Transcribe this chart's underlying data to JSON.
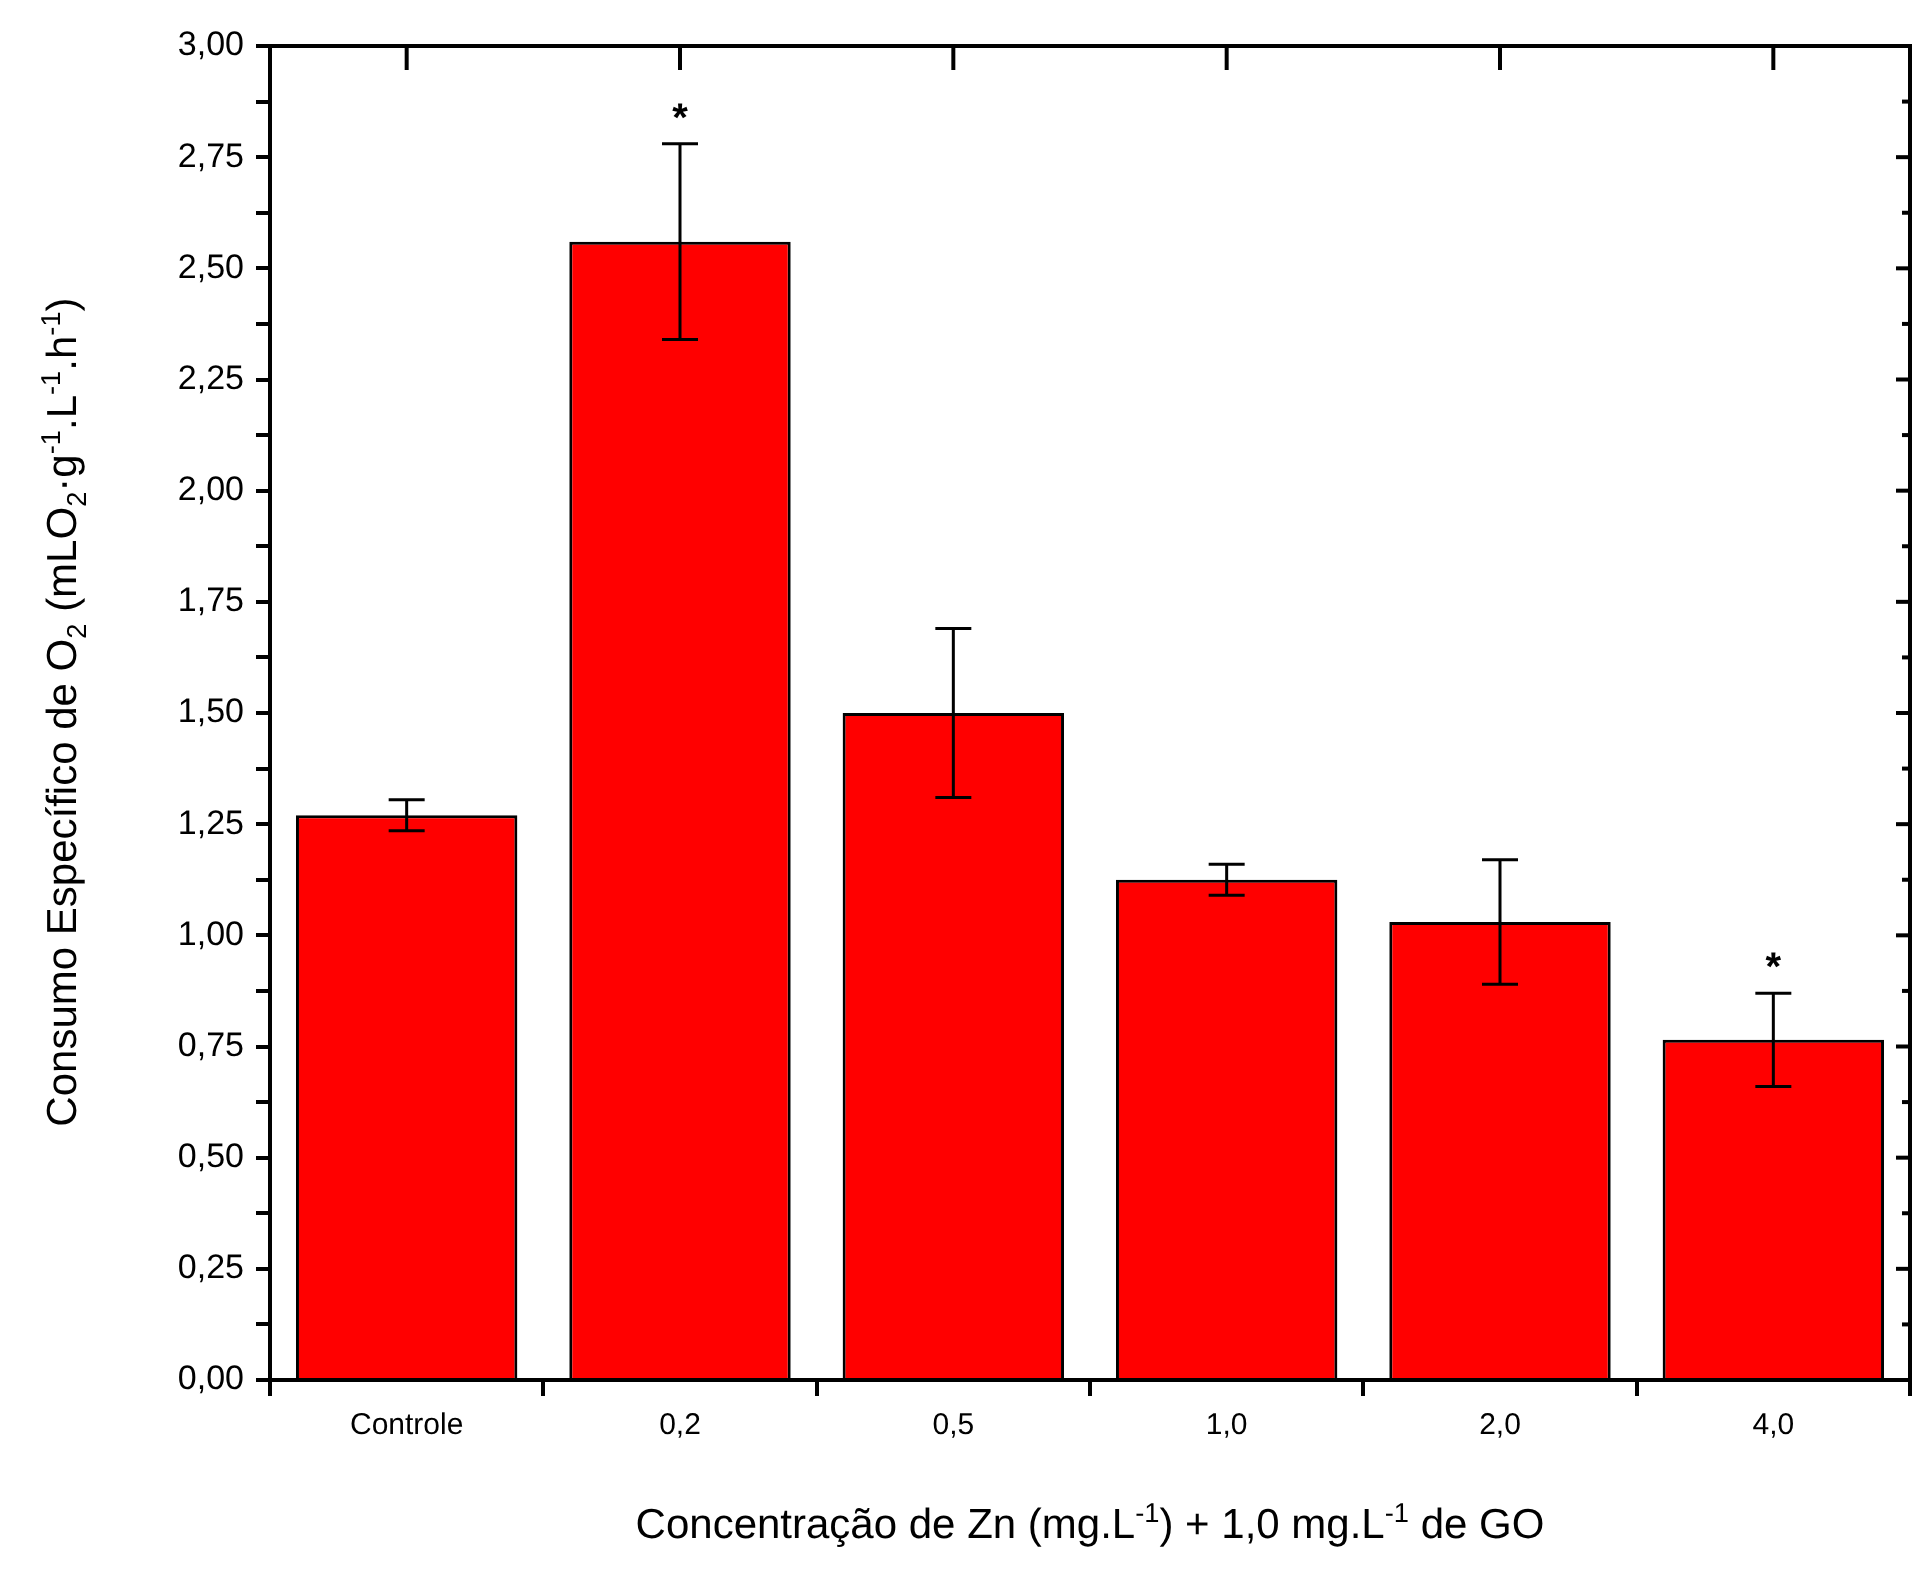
{
  "chart_data": {
    "type": "bar",
    "xlabel": "Concentração de Zn (mg.L$^{-1}$) + 1,0 mg.L$^{-1}$ de GO",
    "ylabel": "Consumo Específico de O$_{2}$ (mLO$_{2}$·g$^{-1}$.L$^{-1}$.h$^{-1}$)",
    "categories": [
      "Controle",
      "0,2",
      "0,5",
      "1,0",
      "2,0",
      "4,0"
    ],
    "values": [
      1.27,
      2.56,
      1.5,
      1.125,
      1.03,
      0.765
    ],
    "errors": [
      0.035,
      0.22,
      0.19,
      0.035,
      0.14,
      0.105
    ],
    "color": "#ff0000",
    "ylim": [
      0,
      3
    ],
    "yticks": [
      {
        "value": 0,
        "label": "0,00"
      },
      {
        "value": 0.125,
        "label": null
      },
      {
        "value": 0.25,
        "label": "0,25"
      },
      {
        "value": 0.375,
        "label": null
      },
      {
        "value": 0.5,
        "label": "0,50"
      },
      {
        "value": 0.625,
        "label": null
      },
      {
        "value": 0.75,
        "label": "0,75"
      },
      {
        "value": 0.875,
        "label": null
      },
      {
        "value": 1,
        "label": "1,00"
      },
      {
        "value": 1.125,
        "label": null
      },
      {
        "value": 1.25,
        "label": "1,25"
      },
      {
        "value": 1.375,
        "label": null
      },
      {
        "value": 1.5,
        "label": "1,50"
      },
      {
        "value": 1.625,
        "label": null
      },
      {
        "value": 1.75,
        "label": "1,75"
      },
      {
        "value": 1.875,
        "label": null
      },
      {
        "value": 2,
        "label": "2,00"
      },
      {
        "value": 2.125,
        "label": null
      },
      {
        "value": 2.25,
        "label": "2,25"
      },
      {
        "value": 2.375,
        "label": null
      },
      {
        "value": 2.5,
        "label": "2,50"
      },
      {
        "value": 2.625,
        "label": null
      },
      {
        "value": 2.75,
        "label": "2,75"
      },
      {
        "value": 2.875,
        "label": null
      },
      {
        "value": 3,
        "label": "3,00"
      }
    ],
    "annotations": [
      {
        "text": "*",
        "x": "0,2",
        "y": 2.78
      },
      {
        "text": "*",
        "x": "4,0",
        "y": 0.87
      }
    ],
    "grid": false,
    "legend": false
  }
}
